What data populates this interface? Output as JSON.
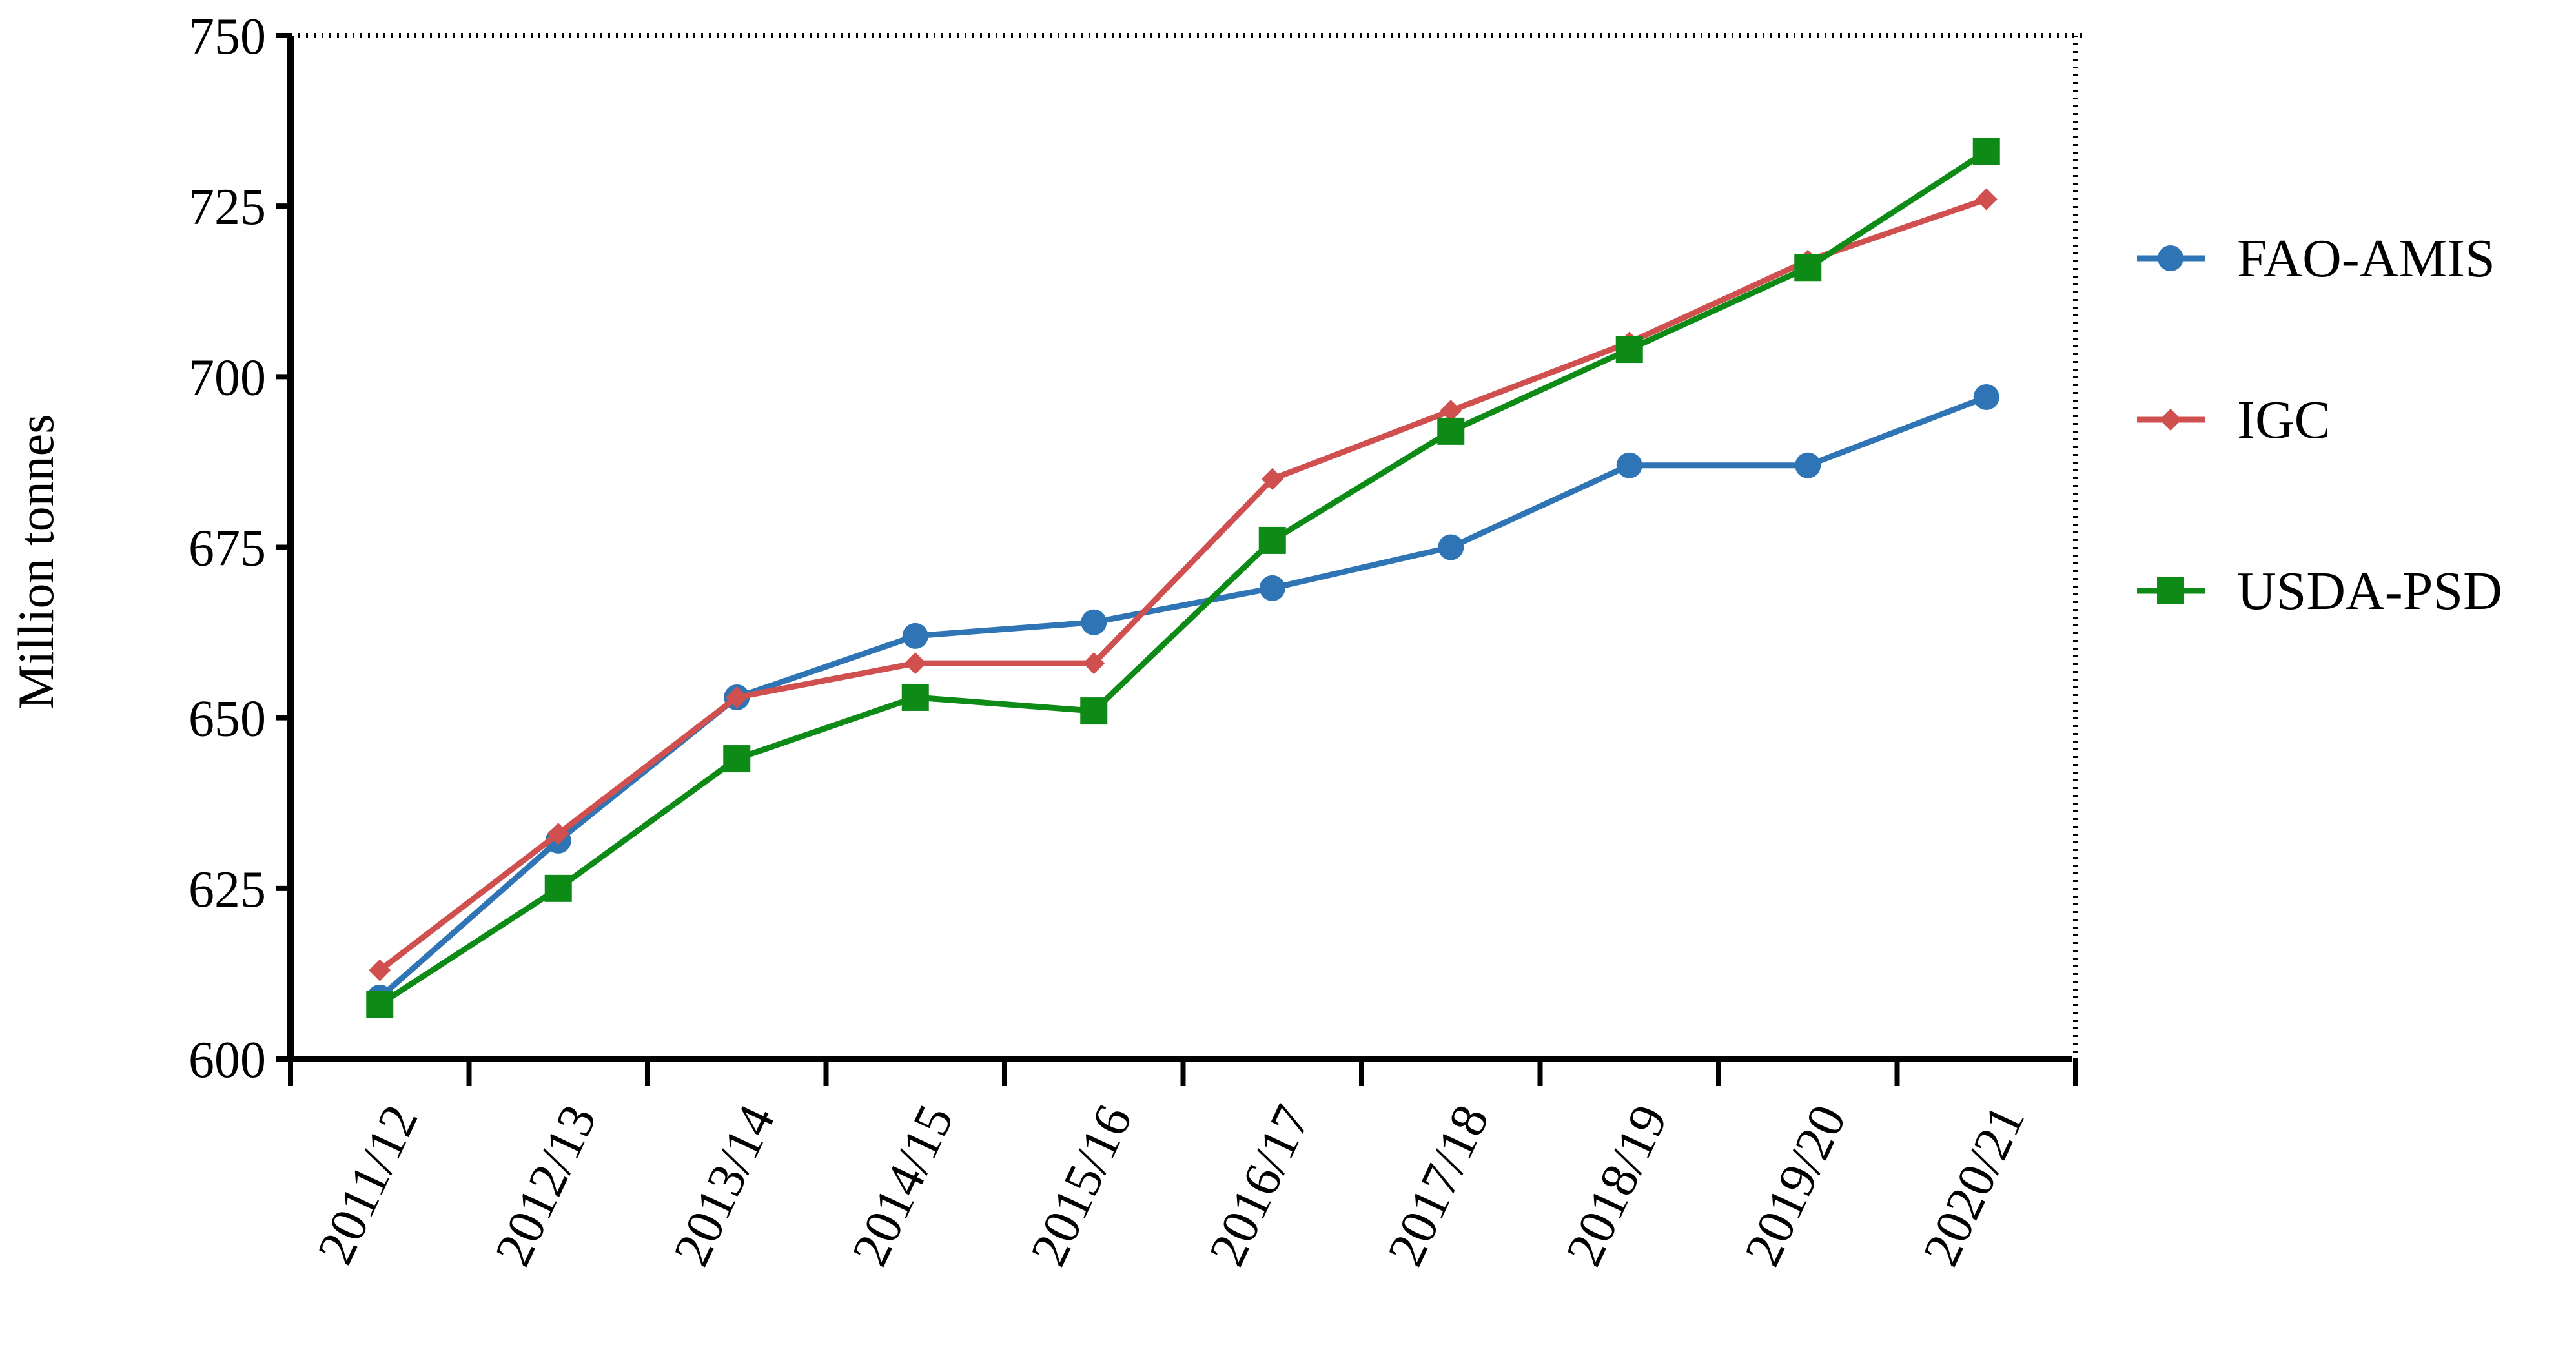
{
  "chart_data": {
    "type": "line",
    "title": "",
    "xlabel": "",
    "ylabel": "Million tonnes",
    "ylim": [
      600,
      750
    ],
    "yticks": [
      "600",
      "625",
      "650",
      "675",
      "700",
      "725",
      "750"
    ],
    "grid": false,
    "legend_position": "right",
    "categories": [
      "2011/12",
      "2012/13",
      "2013/14",
      "2014/15",
      "2015/16",
      "2016/17",
      "2017/18",
      "2018/19",
      "2019/20",
      "2020/21"
    ],
    "series": [
      {
        "name": "FAO-AMIS",
        "color": "#2f75b5",
        "marker": "circle",
        "values": [
          609,
          632,
          653,
          662,
          664,
          669,
          675,
          687,
          687,
          697
        ]
      },
      {
        "name": "IGC",
        "color": "#d0504f",
        "marker": "diamond",
        "values": [
          613,
          633,
          653,
          658,
          658,
          685,
          695,
          705,
          717,
          726
        ]
      },
      {
        "name": "USDA-PSD",
        "color": "#0e8a16",
        "marker": "square",
        "values": [
          608,
          625,
          644,
          653,
          651,
          676,
          692,
          704,
          716,
          733
        ]
      }
    ]
  }
}
